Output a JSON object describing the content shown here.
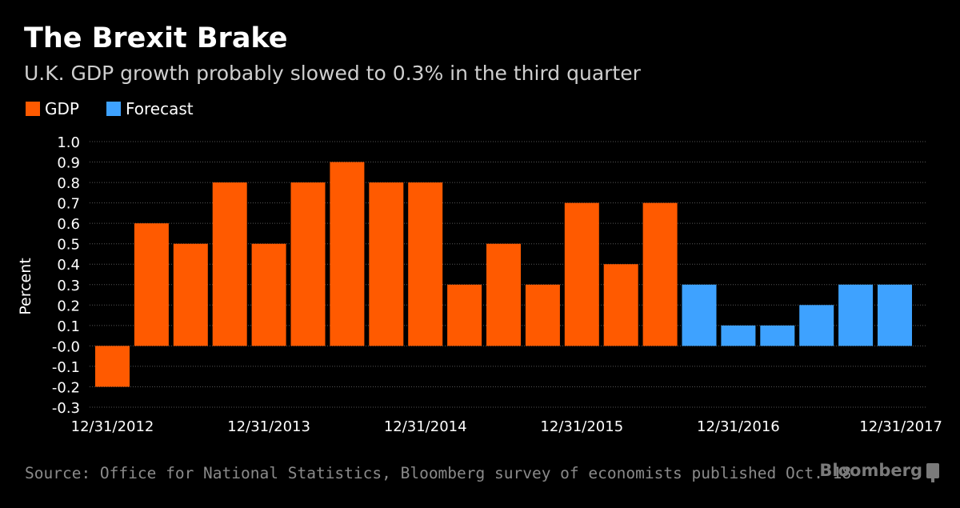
{
  "title": "The Brexit Brake",
  "subtitle": "U.K. GDP growth probably slowed to 0.3% in the third quarter",
  "source": "Source: Office for National Statistics, Bloomberg survey of economists published Oct. 18",
  "brand": "Bloomberg",
  "brand_icon": "bloomberg-terminal-icon",
  "colors": {
    "gdp": "#ff5a00",
    "forecast": "#3ea2ff",
    "grid": "#555555",
    "text": "#ffffff"
  },
  "chart_data": {
    "type": "bar",
    "ylabel": "Percent",
    "ylim": [
      -0.3,
      1.0
    ],
    "yticks": [
      "1.0",
      "0.9",
      "0.8",
      "0.7",
      "0.6",
      "0.5",
      "0.4",
      "0.3",
      "0.2",
      "0.1",
      "-0.0",
      "-0.1",
      "-0.2",
      "-0.3"
    ],
    "x_tick_labels": [
      "12/31/2012",
      "12/31/2013",
      "12/31/2014",
      "12/31/2015",
      "12/31/2016",
      "12/31/2017"
    ],
    "legend": [
      {
        "name": "GDP",
        "color": "#ff5a00"
      },
      {
        "name": "Forecast",
        "color": "#3ea2ff"
      }
    ],
    "grid": true,
    "legend_position": "top-left",
    "series": [
      {
        "name": "GDP",
        "values": [
          -0.2,
          0.6,
          0.5,
          0.8,
          0.5,
          0.8,
          0.9,
          0.8,
          0.8,
          0.3,
          0.5,
          0.3,
          0.7,
          0.4,
          0.7,
          null,
          null,
          null,
          null,
          null,
          null
        ]
      },
      {
        "name": "Forecast",
        "values": [
          null,
          null,
          null,
          null,
          null,
          null,
          null,
          null,
          null,
          null,
          null,
          null,
          null,
          null,
          null,
          0.3,
          0.1,
          0.1,
          0.2,
          0.3,
          0.3
        ]
      }
    ]
  }
}
